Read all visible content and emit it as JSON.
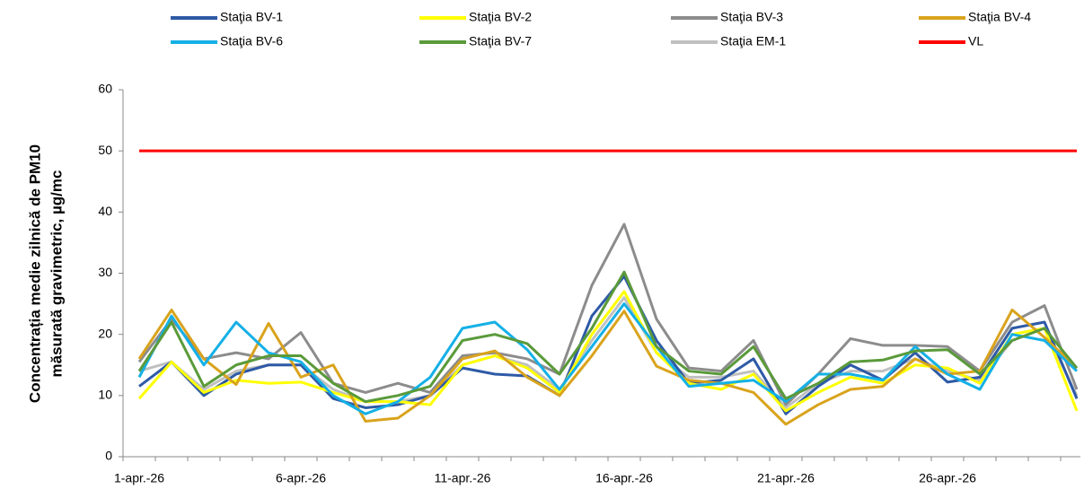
{
  "chart_data": {
    "type": "line",
    "ylabel": [
      "Concentrația medie zilnică de PM10",
      "măsurată gravimetric, µg/mc"
    ],
    "categories": [
      "1-apr.-26",
      null,
      null,
      null,
      null,
      "6-apr.-26",
      null,
      null,
      null,
      null,
      "11-apr.-26",
      null,
      null,
      null,
      null,
      "16-apr.-26",
      null,
      null,
      null,
      null,
      "21-apr.-26",
      null,
      null,
      null,
      null,
      "26-apr.-26",
      null,
      null,
      null,
      null
    ],
    "series": [
      {
        "name": "Staţia BV-1",
        "color": "#2e5aa6",
        "values": [
          11.5,
          15.5,
          10,
          13.5,
          15,
          15,
          9.5,
          8,
          8.5,
          10,
          14.5,
          13.5,
          13.2,
          10,
          23,
          29.5,
          19,
          12,
          12.5,
          16,
          7,
          11.5,
          15,
          12.5,
          17,
          12.2,
          13,
          21,
          22,
          9.5
        ]
      },
      {
        "name": "Staţia BV-2",
        "color": "#ffff00",
        "values": [
          9.5,
          15.5,
          10.5,
          12.5,
          12,
          12.2,
          10.5,
          9,
          9,
          8.5,
          15,
          16.5,
          14.5,
          10.5,
          20,
          27,
          17,
          12,
          11,
          13.5,
          7.5,
          10.5,
          13,
          12,
          15,
          14.5,
          12,
          20,
          21,
          7.5
        ]
      },
      {
        "name": "Staţia BV-3",
        "color": "#8c8c8c",
        "values": [
          15.5,
          22.5,
          16,
          17,
          16,
          20.3,
          12,
          10.5,
          12,
          10.5,
          16.5,
          17,
          16,
          13.5,
          28,
          38,
          22.5,
          14.5,
          14,
          19,
          8.5,
          13.5,
          19.3,
          18.2,
          18.2,
          18,
          14,
          22,
          24.7,
          11
        ]
      },
      {
        "name": "Staţia BV-4",
        "color": "#d9a31c",
        "values": [
          16,
          24,
          16,
          11.8,
          21.8,
          13,
          15,
          5.8,
          6.3,
          10,
          16,
          17.3,
          13,
          10,
          16.5,
          23.8,
          14.8,
          12.5,
          12,
          10.5,
          5.3,
          8.5,
          11,
          11.5,
          16,
          13.5,
          14,
          24,
          19.5,
          14.5
        ]
      },
      {
        "name": "Staţia BV-6",
        "color": "#14b0e6",
        "values": [
          13,
          23,
          15,
          22,
          17,
          15.5,
          10,
          7,
          9,
          13,
          21,
          22,
          17.5,
          11,
          18,
          25,
          18,
          11.5,
          12,
          12.5,
          9,
          13.5,
          13.5,
          12.5,
          18,
          13.5,
          11,
          20,
          19,
          14
        ]
      },
      {
        "name": "Staţia BV-7",
        "color": "#5a9a3a",
        "values": [
          14,
          22,
          11.5,
          15,
          16.5,
          16.5,
          12,
          9,
          10,
          11.5,
          19,
          20,
          18.5,
          13.5,
          21,
          30.2,
          18,
          14,
          13.5,
          18,
          9.5,
          12,
          15.5,
          15.8,
          17.3,
          17.5,
          13.5,
          19,
          21,
          14.5
        ]
      },
      {
        "name": "Staţia EM-1",
        "color": "#c0c0c0",
        "values": [
          14,
          15.5,
          11,
          14,
          15,
          15,
          11,
          9,
          9,
          10,
          15,
          16.5,
          15,
          11,
          19,
          26,
          17,
          13,
          13,
          14,
          8,
          12,
          14,
          14,
          16,
          14,
          12.5,
          19,
          21,
          10
        ]
      },
      {
        "name": "VL",
        "color": "#ff0000",
        "values": [
          50,
          50,
          50,
          50,
          50,
          50,
          50,
          50,
          50,
          50,
          50,
          50,
          50,
          50,
          50,
          50,
          50,
          50,
          50,
          50,
          50,
          50,
          50,
          50,
          50,
          50,
          50,
          50,
          50,
          50
        ]
      }
    ],
    "ylim": [
      0,
      60
    ],
    "yticks": [
      0,
      10,
      20,
      30,
      40,
      50,
      60
    ],
    "grid": false
  }
}
